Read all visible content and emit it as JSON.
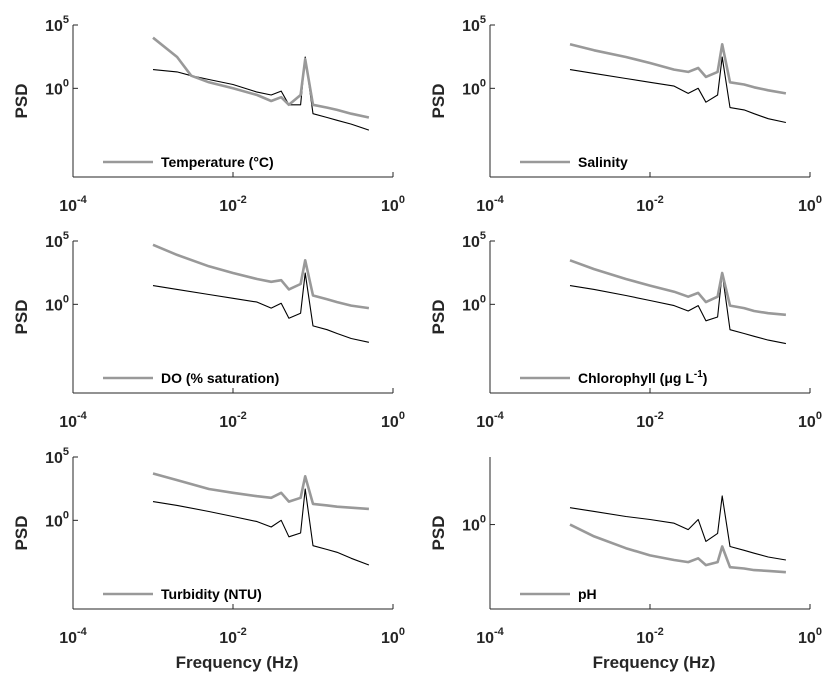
{
  "figure": {
    "xlabel": "Frequency (Hz)",
    "ylabel": "PSD",
    "panels": [
      {
        "legend": {
          "label": "Temperature (°C)"
        },
        "y_ticks": [
          {
            "base": "10",
            "exp": "0"
          },
          {
            "base": "10",
            "exp": "5"
          }
        ]
      },
      {
        "legend": {
          "label": "Salinity"
        },
        "y_ticks": [
          {
            "base": "10",
            "exp": "0"
          },
          {
            "base": "10",
            "exp": "5"
          }
        ]
      },
      {
        "legend": {
          "label": "DO (% saturation)"
        },
        "y_ticks": [
          {
            "base": "10",
            "exp": "0"
          },
          {
            "base": "10",
            "exp": "5"
          }
        ]
      },
      {
        "legend": {
          "label": "Chlorophyll (μg L",
          "sup": "-1",
          "close": ")"
        },
        "y_ticks": [
          {
            "base": "10",
            "exp": "0"
          },
          {
            "base": "10",
            "exp": "5"
          }
        ]
      },
      {
        "legend": {
          "label": "Turbidity (NTU)"
        },
        "y_ticks": [
          {
            "base": "10",
            "exp": "0"
          },
          {
            "base": "10",
            "exp": "5"
          }
        ]
      },
      {
        "legend": {
          "label": "pH"
        },
        "y_ticks": [
          {
            "base": "10",
            "exp": "0"
          }
        ]
      }
    ],
    "x_ticks": [
      {
        "base": "10",
        "exp": "-4"
      },
      {
        "base": "10",
        "exp": "-2"
      },
      {
        "base": "10",
        "exp": "0"
      }
    ]
  },
  "colors": {
    "variable_spectrum": "#999999",
    "reference_spectrum": "#000000",
    "axis": "#262626"
  },
  "chart_data": [
    {
      "type": "line",
      "xscale": "log",
      "yscale": "log",
      "xlim": [
        0.0001,
        1
      ],
      "ylim": [
        1e-07,
        100000
      ],
      "xlabel": "",
      "ylabel": "PSD",
      "series": [
        {
          "name": "Temperature (°C)",
          "x": [
            0.001,
            0.002,
            0.003,
            0.005,
            0.01,
            0.02,
            0.03,
            0.04,
            0.05,
            0.07,
            0.08,
            0.1,
            0.15,
            0.2,
            0.3,
            0.5
          ],
          "y": [
            10000,
            300,
            10,
            3,
            1,
            0.3,
            0.1,
            0.2,
            0.05,
            0.3,
            200,
            0.05,
            0.03,
            0.02,
            0.01,
            0.005
          ]
        },
        {
          "x": [
            0.001,
            0.002,
            0.003,
            0.005,
            0.01,
            0.02,
            0.03,
            0.04,
            0.05,
            0.07,
            0.08,
            0.1,
            0.15,
            0.2,
            0.3,
            0.5
          ],
          "y": [
            30,
            20,
            10,
            5,
            2,
            0.5,
            0.3,
            0.6,
            0.05,
            0.05,
            300,
            0.01,
            0.005,
            0.003,
            0.0015,
            0.0005
          ]
        }
      ]
    },
    {
      "type": "line",
      "xscale": "log",
      "yscale": "log",
      "xlim": [
        0.0001,
        1
      ],
      "ylim": [
        1e-07,
        100000
      ],
      "xlabel": "",
      "ylabel": "PSD",
      "series": [
        {
          "name": "Salinity",
          "x": [
            0.001,
            0.002,
            0.005,
            0.01,
            0.02,
            0.03,
            0.04,
            0.05,
            0.07,
            0.08,
            0.1,
            0.15,
            0.2,
            0.3,
            0.5
          ],
          "y": [
            3000,
            1000,
            300,
            100,
            30,
            20,
            40,
            8,
            20,
            3000,
            3,
            2,
            1.2,
            0.7,
            0.4
          ]
        },
        {
          "x": [
            0.001,
            0.002,
            0.005,
            0.01,
            0.02,
            0.03,
            0.04,
            0.05,
            0.07,
            0.08,
            0.1,
            0.15,
            0.2,
            0.3,
            0.5
          ],
          "y": [
            30,
            15,
            6,
            3,
            1.5,
            0.4,
            1,
            0.08,
            0.3,
            300,
            0.03,
            0.02,
            0.01,
            0.004,
            0.002
          ]
        }
      ]
    },
    {
      "type": "line",
      "xscale": "log",
      "yscale": "log",
      "xlim": [
        0.0001,
        1
      ],
      "ylim": [
        1e-07,
        100000
      ],
      "xlabel": "",
      "ylabel": "PSD",
      "series": [
        {
          "name": "DO (% saturation)",
          "x": [
            0.001,
            0.002,
            0.005,
            0.01,
            0.02,
            0.03,
            0.04,
            0.05,
            0.07,
            0.08,
            0.1,
            0.15,
            0.2,
            0.3,
            0.5
          ],
          "y": [
            50000,
            8000,
            1000,
            300,
            100,
            60,
            80,
            15,
            40,
            3000,
            5,
            2.5,
            1.5,
            0.8,
            0.5
          ]
        },
        {
          "x": [
            0.001,
            0.002,
            0.005,
            0.01,
            0.02,
            0.03,
            0.04,
            0.05,
            0.07,
            0.08,
            0.1,
            0.15,
            0.2,
            0.3,
            0.5
          ],
          "y": [
            30,
            15,
            6,
            3,
            1.5,
            0.5,
            1.2,
            0.08,
            0.2,
            300,
            0.02,
            0.01,
            0.005,
            0.002,
            0.001
          ]
        }
      ]
    },
    {
      "type": "line",
      "xscale": "log",
      "yscale": "log",
      "xlim": [
        0.0001,
        1
      ],
      "ylim": [
        1e-07,
        100000
      ],
      "xlabel": "",
      "ylabel": "PSD",
      "series": [
        {
          "name": "Chlorophyll (μg L-1)",
          "x": [
            0.001,
            0.002,
            0.005,
            0.01,
            0.02,
            0.03,
            0.04,
            0.05,
            0.07,
            0.08,
            0.1,
            0.15,
            0.2,
            0.3,
            0.5
          ],
          "y": [
            3000,
            600,
            100,
            30,
            10,
            4,
            8,
            1.5,
            4,
            300,
            0.8,
            0.5,
            0.3,
            0.2,
            0.15
          ]
        },
        {
          "x": [
            0.001,
            0.002,
            0.005,
            0.01,
            0.02,
            0.03,
            0.04,
            0.05,
            0.07,
            0.08,
            0.1,
            0.15,
            0.2,
            0.3,
            0.5
          ],
          "y": [
            30,
            15,
            5,
            2,
            0.8,
            0.3,
            0.8,
            0.05,
            0.1,
            300,
            0.01,
            0.005,
            0.003,
            0.0015,
            0.0008
          ]
        }
      ]
    },
    {
      "type": "line",
      "xscale": "log",
      "yscale": "log",
      "xlim": [
        0.0001,
        1
      ],
      "ylim": [
        1e-07,
        100000
      ],
      "xlabel": "Frequency (Hz)",
      "ylabel": "PSD",
      "series": [
        {
          "name": "Turbidity (NTU)",
          "x": [
            0.001,
            0.002,
            0.005,
            0.01,
            0.02,
            0.03,
            0.04,
            0.05,
            0.07,
            0.08,
            0.1,
            0.15,
            0.2,
            0.3,
            0.5
          ],
          "y": [
            5000,
            1500,
            300,
            150,
            80,
            60,
            150,
            30,
            60,
            3000,
            20,
            15,
            12,
            10,
            8
          ]
        },
        {
          "x": [
            0.001,
            0.002,
            0.005,
            0.01,
            0.02,
            0.03,
            0.04,
            0.05,
            0.07,
            0.08,
            0.1,
            0.15,
            0.2,
            0.3,
            0.5
          ],
          "y": [
            30,
            15,
            5,
            2,
            0.8,
            0.3,
            1,
            0.05,
            0.1,
            300,
            0.01,
            0.005,
            0.003,
            0.001,
            0.0003
          ]
        }
      ]
    },
    {
      "type": "line",
      "xscale": "log",
      "yscale": "log",
      "xlim": [
        0.0001,
        1
      ],
      "ylim": [
        1e-05,
        10000
      ],
      "xlabel": "Frequency (Hz)",
      "ylabel": "PSD",
      "series": [
        {
          "name": "pH",
          "x": [
            0.001,
            0.002,
            0.005,
            0.01,
            0.02,
            0.03,
            0.04,
            0.05,
            0.07,
            0.08,
            0.1,
            0.15,
            0.2,
            0.3,
            0.5
          ],
          "y": [
            1,
            0.2,
            0.04,
            0.015,
            0.008,
            0.006,
            0.01,
            0.004,
            0.006,
            0.05,
            0.003,
            0.0025,
            0.002,
            0.0018,
            0.0015
          ]
        },
        {
          "x": [
            0.001,
            0.002,
            0.005,
            0.01,
            0.02,
            0.03,
            0.04,
            0.05,
            0.07,
            0.08,
            0.1,
            0.15,
            0.2,
            0.3,
            0.5
          ],
          "y": [
            10,
            6,
            3,
            2,
            1.2,
            0.5,
            2,
            0.1,
            0.3,
            50,
            0.05,
            0.03,
            0.02,
            0.012,
            0.008
          ]
        }
      ]
    }
  ]
}
